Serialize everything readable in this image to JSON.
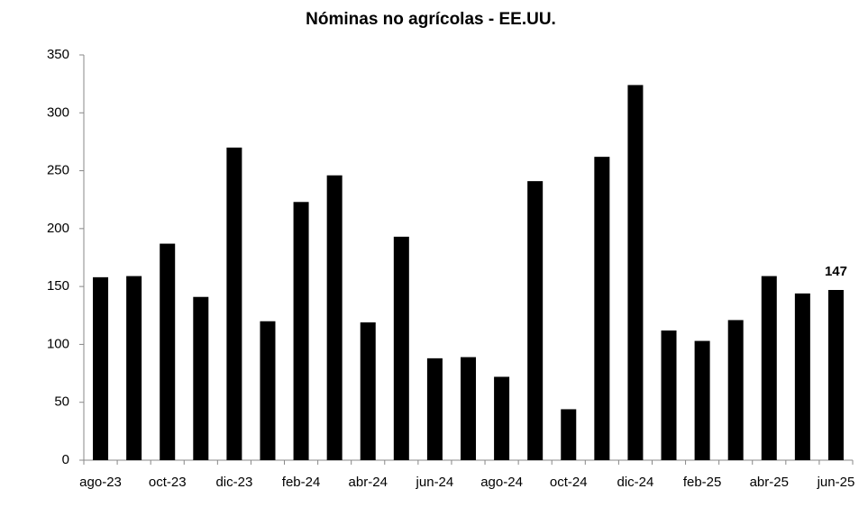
{
  "chart_data": {
    "type": "bar",
    "title": "Nóminas no agrícolas - EE.UU.",
    "categories": [
      "ago-23",
      null,
      "oct-23",
      null,
      "dic-23",
      null,
      "feb-24",
      null,
      "abr-24",
      null,
      "jun-24",
      null,
      "ago-24",
      null,
      "oct-24",
      null,
      "dic-24",
      null,
      "feb-25",
      null,
      "abr-25",
      null,
      "jun-25"
    ],
    "values": [
      158,
      159,
      187,
      141,
      270,
      120,
      223,
      246,
      119,
      193,
      88,
      89,
      72,
      241,
      44,
      262,
      324,
      112,
      103,
      121,
      159,
      144,
      147
    ],
    "color": "#000000",
    "ylim": [
      0,
      350
    ],
    "yticks": [
      0,
      50,
      100,
      150,
      200,
      250,
      300,
      350
    ],
    "grid": false,
    "label_last": true
  }
}
